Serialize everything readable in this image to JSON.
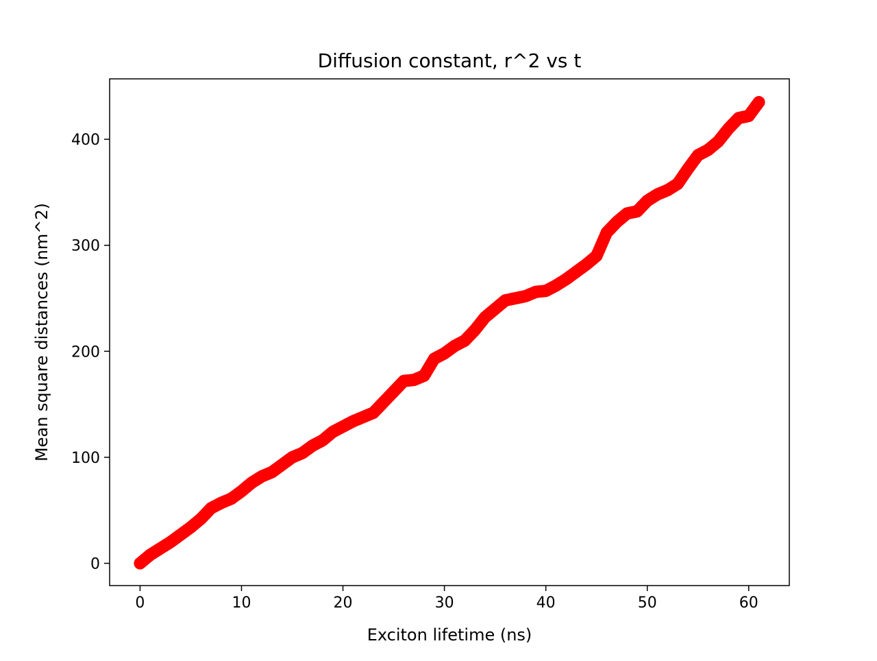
{
  "chart_data": {
    "type": "scatter",
    "title": "Diffusion constant, r^2 vs t",
    "xlabel": "Exciton lifetime (ns)",
    "ylabel": "Mean square distances (nm^2)",
    "xlim": [
      -3,
      64
    ],
    "ylim": [
      -21,
      457
    ],
    "xticks": [
      0,
      10,
      20,
      30,
      40,
      50,
      60
    ],
    "yticks": [
      0,
      100,
      200,
      300,
      400
    ],
    "grid": false,
    "legend": null,
    "marker_color": "#ff0000",
    "series": [
      {
        "x": [
          0,
          1,
          2,
          3,
          4,
          5,
          6,
          7,
          8,
          9,
          10,
          11,
          12,
          13,
          14,
          15,
          16,
          17,
          18,
          19,
          20,
          21,
          22,
          23,
          24,
          25,
          26,
          27,
          28,
          29,
          30,
          31,
          32,
          33,
          34,
          35,
          36,
          37,
          38,
          39,
          40,
          41,
          42,
          43,
          44,
          45,
          46,
          47,
          48,
          49,
          50,
          51,
          52,
          53,
          54,
          55,
          56,
          57,
          58,
          59,
          60,
          61
        ],
        "y": [
          0,
          8,
          14,
          20,
          27,
          34,
          42,
          52,
          57,
          61,
          68,
          76,
          82,
          86,
          93,
          100,
          104,
          111,
          116,
          124,
          129,
          134,
          138,
          142,
          152,
          162,
          172,
          173,
          177,
          193,
          198,
          205,
          210,
          220,
          232,
          240,
          248,
          250,
          252,
          256,
          257,
          262,
          268,
          275,
          282,
          290,
          312,
          322,
          330,
          332,
          342,
          348,
          352,
          358,
          372,
          385,
          390,
          398,
          410,
          420,
          422,
          435
        ]
      }
    ]
  }
}
